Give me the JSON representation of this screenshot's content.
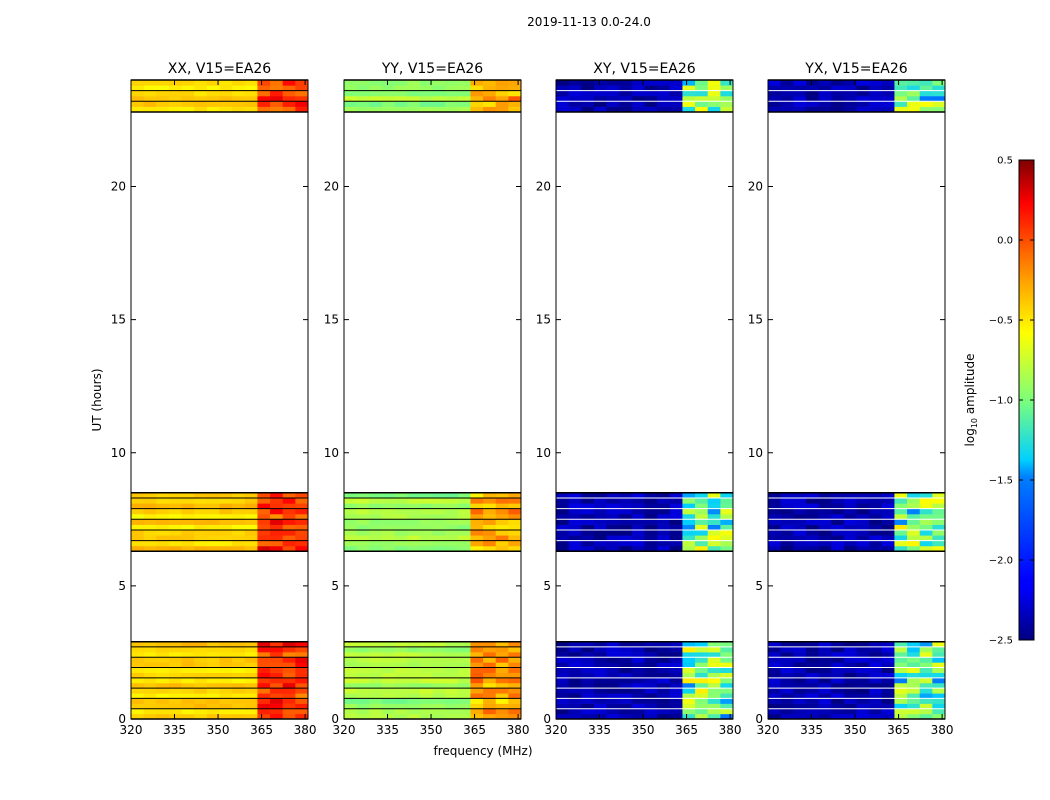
{
  "figure": {
    "suptitle": "2019-11-13 0.0-24.0",
    "ylabel": "UT (hours)",
    "xlabel": "frequency (MHz)"
  },
  "chart_data": {
    "type": "heatmap",
    "xlim": [
      320,
      381
    ],
    "ylim": [
      0,
      24
    ],
    "xticks": [
      "320",
      "335",
      "350",
      "365",
      "380"
    ],
    "yticks": [
      "0",
      "5",
      "10",
      "15",
      "20"
    ],
    "data_time_ranges_hours": [
      [
        0.0,
        2.9
      ],
      [
        6.3,
        8.5
      ],
      [
        22.8,
        24.0
      ]
    ],
    "hot_band_mhz": [
      363,
      380
    ],
    "panels": [
      {
        "title": "XX, V15=EA26",
        "base_log10_amp": -0.45,
        "band_log10_amp": 0.05
      },
      {
        "title": "YY, V15=EA26",
        "base_log10_amp": -0.9,
        "band_log10_amp": -0.3
      },
      {
        "title": "XY, V15=EA26",
        "base_log10_amp": -2.5,
        "band_log10_amp": -1.0
      },
      {
        "title": "YX, V15=EA26",
        "base_log10_amp": -2.5,
        "band_log10_amp": -1.0
      }
    ],
    "colorbar": {
      "label": "log",
      "label_sub": "10",
      "label_suffix": " amplitude",
      "range": [
        -2.5,
        0.5
      ],
      "ticks": [
        "0.5",
        "0.0",
        "−0.5",
        "−1.0",
        "−1.5",
        "−2.0",
        "−2.5"
      ],
      "tick_values": [
        0.5,
        0.0,
        -0.5,
        -1.0,
        -1.5,
        -2.0,
        -2.5
      ]
    }
  }
}
